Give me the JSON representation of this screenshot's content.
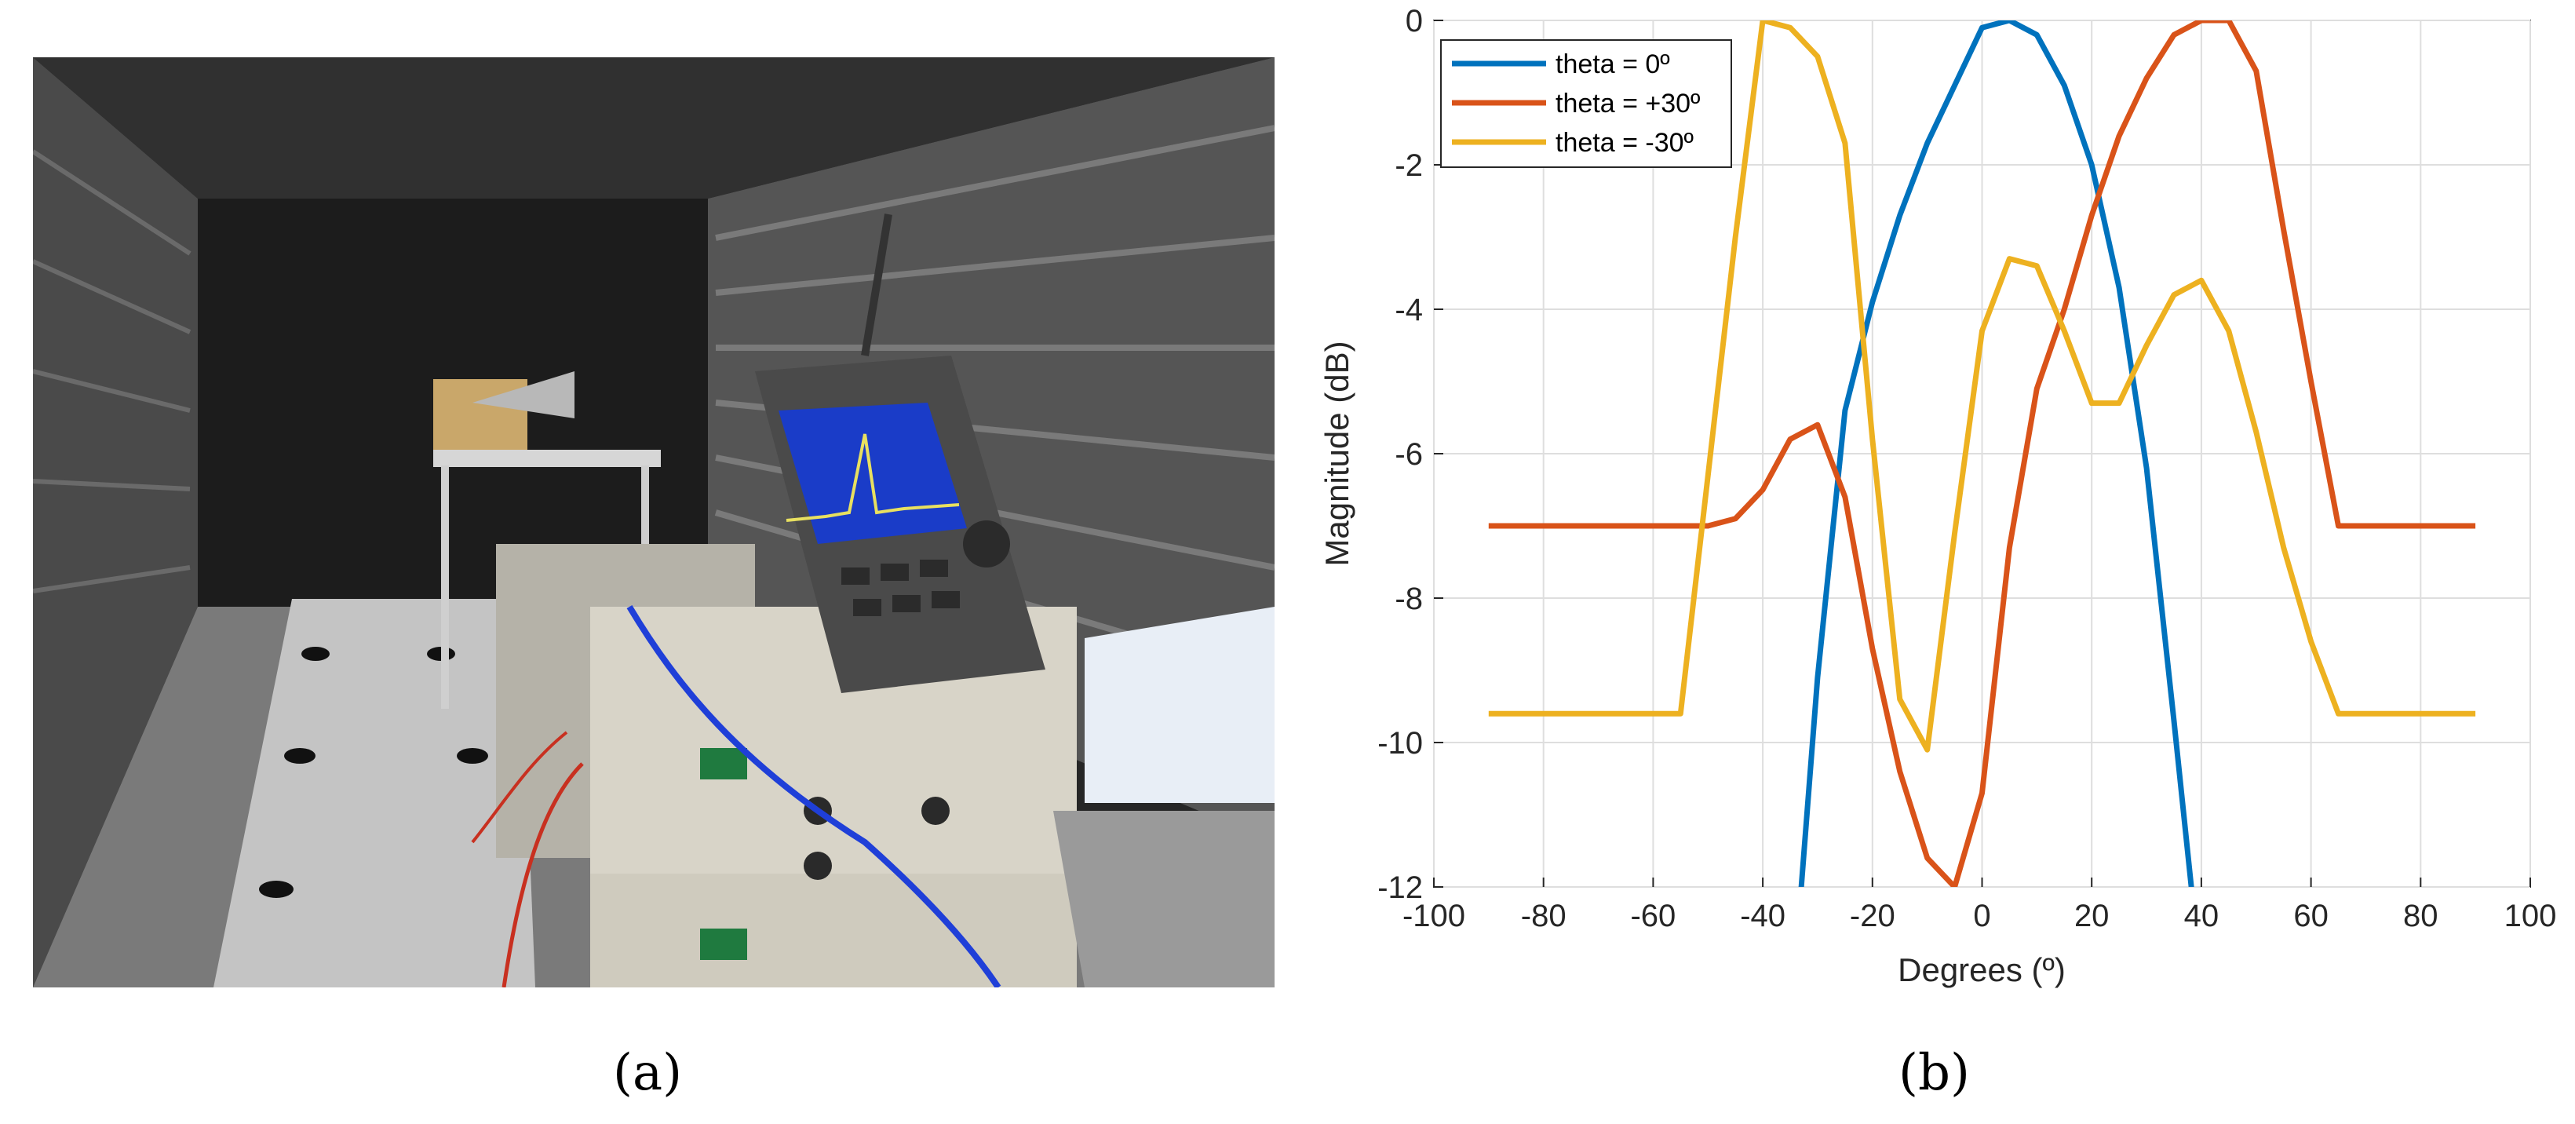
{
  "captions": {
    "a": "(a)",
    "b": "(b)"
  },
  "photo": {
    "description_label": "",
    "colors": {
      "chamber": "#262626",
      "absorber": "#5a5a5a",
      "floor": "#bfbfbf",
      "instrument_case": "#d8d4c8",
      "analyzer": "#4a4a4a",
      "analyzer_screen": "#1a3cc8",
      "laptop_screen": "#e8eef6",
      "cable_blue": "#1f3fd8",
      "cable_red": "#c83020"
    }
  },
  "chart_data": {
    "type": "line",
    "xlabel": "Degrees (º)",
    "ylabel": "Magnitude (dB)",
    "xlim": [
      -100,
      100
    ],
    "ylim": [
      -12,
      0
    ],
    "xticks": [
      -100,
      -80,
      -60,
      -40,
      -20,
      0,
      20,
      40,
      60,
      80,
      100
    ],
    "yticks": [
      0,
      -2,
      -4,
      -6,
      -8,
      -10,
      -12
    ],
    "grid": true,
    "legend_position": "top-left",
    "series": [
      {
        "name": "theta = 0º",
        "color": "#0072BD",
        "x": [
          -34,
          -30,
          -25,
          -20,
          -15,
          -10,
          -5,
          0,
          5,
          10,
          15,
          20,
          25,
          30,
          35,
          39
        ],
        "y": [
          -13,
          -9.1,
          -5.4,
          -3.9,
          -2.7,
          -1.7,
          -0.9,
          -0.1,
          0,
          -0.2,
          -0.9,
          -2,
          -3.7,
          -6.2,
          -9.7,
          -12.6
        ]
      },
      {
        "name": "theta = +30º",
        "color": "#D95319",
        "x": [
          -90,
          -85,
          -80,
          -75,
          -70,
          -65,
          -60,
          -55,
          -50,
          -45,
          -40,
          -35,
          -30,
          -25,
          -20,
          -15,
          -10,
          -5,
          0,
          5,
          10,
          15,
          20,
          25,
          30,
          35,
          40,
          45,
          50,
          55,
          60,
          65,
          70,
          75,
          80,
          85,
          90
        ],
        "y": [
          -7,
          -7,
          -7,
          -7,
          -7,
          -7,
          -7,
          -7,
          -7,
          -6.9,
          -6.5,
          -5.8,
          -5.6,
          -6.6,
          -8.7,
          -10.4,
          -11.6,
          -12,
          -10.7,
          -7.3,
          -5.1,
          -4,
          -2.7,
          -1.6,
          -0.8,
          -0.2,
          0,
          0,
          -0.7,
          -2.9,
          -5,
          -7,
          -7,
          -7,
          -7,
          -7,
          -7
        ]
      },
      {
        "name": "theta = -30º",
        "color": "#EDB120",
        "x": [
          -90,
          -85,
          -80,
          -75,
          -70,
          -65,
          -60,
          -55,
          -50,
          -45,
          -40,
          -35,
          -30,
          -25,
          -20,
          -15,
          -10,
          -5,
          0,
          5,
          10,
          15,
          20,
          25,
          30,
          35,
          40,
          45,
          50,
          55,
          60,
          65,
          70,
          75,
          80,
          85,
          90
        ],
        "y": [
          -9.6,
          -9.6,
          -9.6,
          -9.6,
          -9.6,
          -9.6,
          -9.6,
          -9.6,
          -6.3,
          -3,
          0,
          -0.1,
          -0.5,
          -1.7,
          -5.8,
          -9.4,
          -10.1,
          -7.1,
          -4.3,
          -3.3,
          -3.4,
          -4.3,
          -5.3,
          -5.3,
          -4.5,
          -3.8,
          -3.6,
          -4.3,
          -5.7,
          -7.3,
          -8.6,
          -9.6,
          -9.6,
          -9.6,
          -9.6,
          -9.6,
          -9.6
        ]
      }
    ]
  }
}
